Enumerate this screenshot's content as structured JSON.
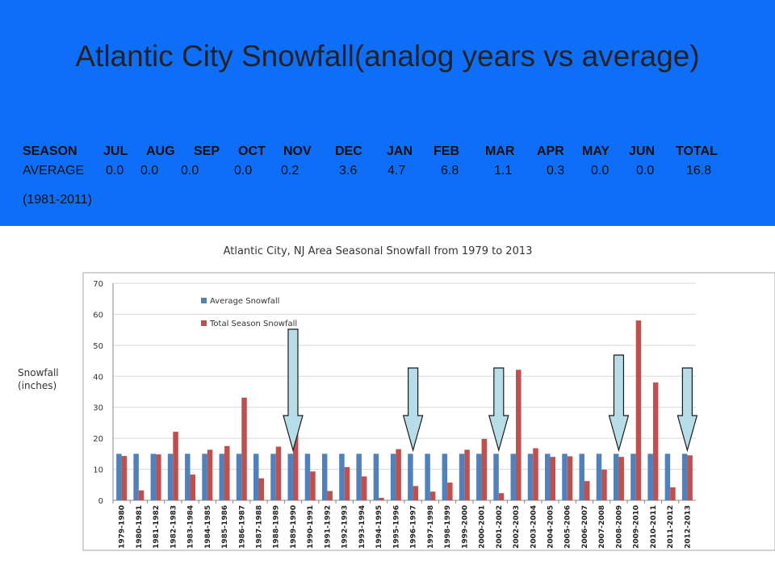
{
  "slide": {
    "title": "Atlantic City  Snowfall(analog years vs average)",
    "banner_color": "#0f6ef7"
  },
  "season_table": {
    "header": [
      "SEASON",
      "JUL",
      "AUG",
      "SEP",
      "OCT",
      "NOV",
      "DEC",
      "JAN",
      "FEB",
      "MAR",
      "APR",
      "MAY",
      "JUN",
      "TOTAL"
    ],
    "average": [
      "AVERAGE",
      "0.0",
      "0.0",
      "0.0",
      "0.0",
      "0.2",
      "3.6",
      "4.7",
      "6.8",
      "1.1",
      "0.3",
      "0.0",
      "0.0",
      "16.8"
    ],
    "period": "(1981-2011)"
  },
  "chart_data": {
    "type": "bar",
    "title": "Atlantic City, NJ Area Seasonal Snowfall from 1979 to 2013",
    "xlabel": "",
    "ylabel": "Snowfall (inches)",
    "ylim": [
      0,
      70
    ],
    "yticks": [
      0,
      10,
      20,
      30,
      40,
      50,
      60,
      70
    ],
    "grid": true,
    "legend_position": "top-left",
    "categories": [
      "1979-1980",
      "1980-1981",
      "1981-1982",
      "1982-1983",
      "1983-1984",
      "1984-1985",
      "1985-1986",
      "1986-1987",
      "1987-1988",
      "1988-1989",
      "1989-1990",
      "1990-1991",
      "1991-1992",
      "1992-1993",
      "1993-1994",
      "1994-1995",
      "1995-1996",
      "1996-1997",
      "1997-1998",
      "1998-1999",
      "1999-2000",
      "2000-2001",
      "2001-2002",
      "2002-2003",
      "2003-2004",
      "2004-2005",
      "2005-2006",
      "2006-2007",
      "2007-2008",
      "2008-2009",
      "2009-2010",
      "2010-2011",
      "2011-2012",
      "2012-2013"
    ],
    "series": [
      {
        "name": "Average Snowfall",
        "color": "#4f81bd",
        "values": [
          15,
          15,
          15,
          15,
          15,
          15,
          15,
          15,
          15,
          15,
          15,
          15,
          15,
          15,
          15,
          15,
          15,
          15,
          15,
          15,
          15,
          15,
          15,
          15,
          15,
          15,
          15,
          15,
          15,
          15,
          15,
          15,
          15,
          15
        ]
      },
      {
        "name": "Total Season Snowfall",
        "color": "#c0504d",
        "values": [
          14.3,
          3.2,
          14.8,
          22.1,
          8.3,
          16.3,
          17.5,
          33.1,
          7.1,
          17.3,
          23,
          9.3,
          3,
          10.7,
          7.7,
          0.8,
          16.5,
          4.6,
          2.8,
          5.7,
          16.3,
          19.8,
          2.3,
          42.1,
          16.8,
          14,
          14.2,
          6.2,
          9.9,
          14,
          58,
          38,
          4.2,
          14.5
        ]
      }
    ],
    "analog_arrow_seasons": [
      "1989-1990",
      "1996-1997",
      "2001-2002",
      "2008-2009",
      "2012-2013"
    ],
    "arrow_color": "#b7dde8"
  }
}
